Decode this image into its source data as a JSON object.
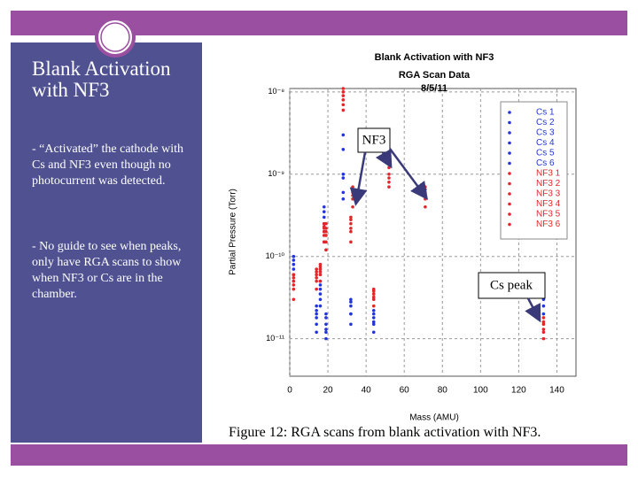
{
  "slide": {
    "title": "Blank Activation with NF3",
    "bullets": [
      "- “Activated” the cathode with Cs and NF3 even though no photocurrent was detected.",
      "- No guide to see when peaks, only have RGA scans to show when NF3 or Cs are in the chamber."
    ],
    "caption": "Figure 12: RGA scans from blank activation with NF3."
  },
  "chart_data": {
    "type": "scatter",
    "title": "Blank Activation with NF3",
    "subtitle": "RGA Scan Data",
    "date": "8/5/11",
    "x_label": "Mass (AMU)",
    "y_label": "Partial Pressure (Torr)",
    "xlim": [
      0,
      150
    ],
    "ylim": [
      3.5e-12,
      1.1e-08
    ],
    "log_y": true,
    "grid": true,
    "legend": "upper right",
    "xticks": [
      0,
      20,
      40,
      60,
      80,
      100,
      120,
      140
    ],
    "yticks": [
      {
        "value": 1e-11,
        "label": "10⁻¹¹"
      },
      {
        "value": 1e-10,
        "label": "10⁻¹⁰"
      },
      {
        "value": 1e-09,
        "label": "10⁻⁹"
      },
      {
        "value": 1e-08,
        "label": "10⁻⁸"
      }
    ],
    "annotations": [
      "NF3",
      "Cs peak"
    ],
    "x": [
      2,
      14,
      16,
      18,
      19,
      28,
      32,
      33,
      44,
      52,
      71,
      133
    ],
    "series": [
      {
        "name": "Cs 1",
        "color": "#2236d8",
        "values": [
          6e-11,
          1.5e-11,
          3e-11,
          2e-10,
          1.2e-11,
          6e-10,
          2e-11,
          null,
          1.5e-11,
          null,
          null,
          2.5e-11
        ]
      },
      {
        "name": "Cs 2",
        "color": "#2236d8",
        "values": [
          8e-11,
          2e-11,
          4e-11,
          3e-10,
          1.5e-11,
          9e-10,
          2.5e-11,
          null,
          1.8e-11,
          null,
          null,
          3.5e-11
        ]
      },
      {
        "name": "Cs 3",
        "color": "#2236d8",
        "values": [
          5e-11,
          1.2e-11,
          2.5e-11,
          1.5e-10,
          1e-11,
          5e-10,
          1.5e-11,
          null,
          1.2e-11,
          null,
          null,
          2e-11
        ]
      },
      {
        "name": "Cs 4",
        "color": "#2236d8",
        "values": [
          1e-10,
          2.5e-11,
          5e-11,
          4e-10,
          2e-11,
          2e-09,
          3e-11,
          null,
          2e-11,
          null,
          null,
          4e-11
        ]
      },
      {
        "name": "Cs 5",
        "color": "#2236d8",
        "values": [
          7e-11,
          1.8e-11,
          3.5e-11,
          2.5e-10,
          1.3e-11,
          1e-09,
          2e-11,
          null,
          1.6e-11,
          null,
          null,
          3e-11
        ]
      },
      {
        "name": "Cs 6",
        "color": "#2236d8",
        "values": [
          9e-11,
          2.2e-11,
          4.5e-11,
          3.5e-10,
          1.8e-11,
          3e-09,
          2.8e-11,
          null,
          2.2e-11,
          null,
          null,
          5e-11
        ]
      },
      {
        "name": "NF3 1",
        "color": "#e02828",
        "values": [
          4e-11,
          5e-11,
          6e-11,
          1.8e-10,
          1.5e-10,
          8e-09,
          2e-10,
          5e-10,
          3e-11,
          8e-10,
          5e-10,
          1.2e-11
        ]
      },
      {
        "name": "NF3 2",
        "color": "#e02828",
        "values": [
          5e-11,
          6e-11,
          7e-11,
          2.2e-10,
          2e-10,
          1e-08,
          2.5e-10,
          6e-10,
          3.5e-11,
          1e-09,
          6e-10,
          1.5e-11
        ]
      },
      {
        "name": "NF3 3",
        "color": "#e02828",
        "values": [
          3e-11,
          4e-11,
          5e-11,
          1.5e-10,
          1.2e-10,
          6e-09,
          1.5e-10,
          4e-10,
          2.5e-11,
          7e-10,
          4e-10,
          1e-11
        ]
      },
      {
        "name": "NF3 4",
        "color": "#e02828",
        "values": [
          6e-11,
          7e-11,
          8e-11,
          2.5e-10,
          2.5e-10,
          9e-09,
          3e-10,
          7e-10,
          4e-11,
          1.2e-09,
          7e-10,
          1.8e-11
        ]
      },
      {
        "name": "NF3 5",
        "color": "#e02828",
        "values": [
          4.5e-11,
          5.5e-11,
          6.5e-11,
          2e-10,
          1.8e-10,
          7e-09,
          2.2e-10,
          5.5e-10,
          3.2e-11,
          9e-10,
          5.5e-10,
          1.3e-11
        ]
      },
      {
        "name": "NF3 6",
        "color": "#e02828",
        "values": [
          5.5e-11,
          6.5e-11,
          7.5e-11,
          2.3e-10,
          2.2e-10,
          1.1e-08,
          2.8e-10,
          6.5e-10,
          3.8e-11,
          1.3e-09,
          6.5e-10,
          1.6e-11
        ]
      }
    ]
  }
}
